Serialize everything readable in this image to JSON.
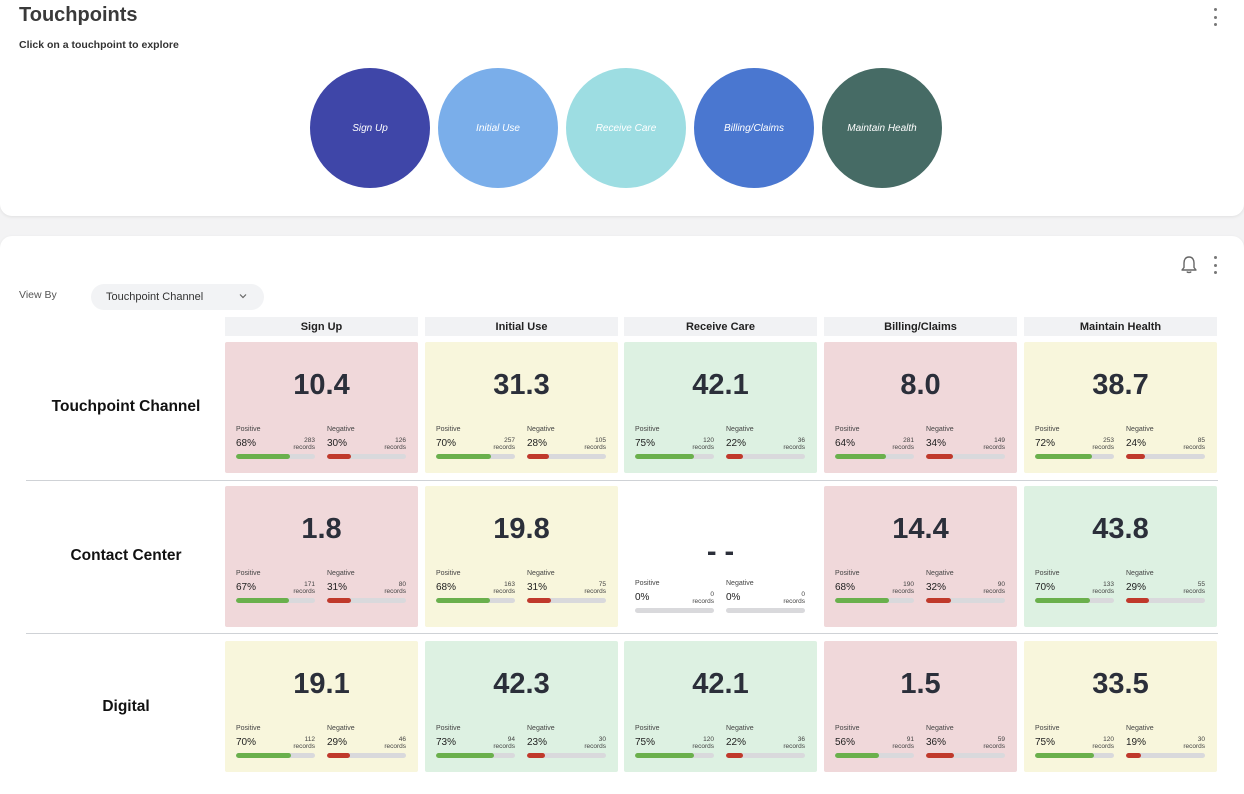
{
  "header": {
    "title": "Touchpoints",
    "subtitle": "Click on a touchpoint to explore"
  },
  "touchpoints": [
    {
      "label": "Sign Up",
      "color": "#3f46a8"
    },
    {
      "label": "Initial Use",
      "color": "#7aaeea"
    },
    {
      "label": "Receive Care",
      "color": "#9ddde2"
    },
    {
      "label": "Billing/Claims",
      "color": "#4a77d0"
    },
    {
      "label": "Maintain Health",
      "color": "#466b65"
    }
  ],
  "controls": {
    "view_by_label": "View By",
    "view_by_value": "Touchpoint Channel"
  },
  "columns": [
    "Sign Up",
    "Initial Use",
    "Receive Care",
    "Billing/Claims",
    "Maintain Health"
  ],
  "labels": {
    "positive": "Positive",
    "negative": "Negative",
    "records": "records"
  },
  "rows": [
    {
      "name": "Touchpoint Channel",
      "cells": [
        {
          "score": "10.4",
          "tone": "red",
          "pos_pct": "68%",
          "pos_records": "283",
          "neg_pct": "30%",
          "neg_records": "126",
          "pos_fill": 0.68,
          "neg_fill": 0.3
        },
        {
          "score": "31.3",
          "tone": "yellow",
          "pos_pct": "70%",
          "pos_records": "257",
          "neg_pct": "28%",
          "neg_records": "105",
          "pos_fill": 0.7,
          "neg_fill": 0.28
        },
        {
          "score": "42.1",
          "tone": "green",
          "pos_pct": "75%",
          "pos_records": "120",
          "neg_pct": "22%",
          "neg_records": "36",
          "pos_fill": 0.75,
          "neg_fill": 0.22
        },
        {
          "score": "8.0",
          "tone": "red",
          "pos_pct": "64%",
          "pos_records": "281",
          "neg_pct": "34%",
          "neg_records": "149",
          "pos_fill": 0.64,
          "neg_fill": 0.34
        },
        {
          "score": "38.7",
          "tone": "yellow",
          "pos_pct": "72%",
          "pos_records": "253",
          "neg_pct": "24%",
          "neg_records": "85",
          "pos_fill": 0.72,
          "neg_fill": 0.24
        }
      ]
    },
    {
      "name": "Contact Center",
      "cells": [
        {
          "score": "1.8",
          "tone": "red",
          "pos_pct": "67%",
          "pos_records": "171",
          "neg_pct": "31%",
          "neg_records": "80",
          "pos_fill": 0.67,
          "neg_fill": 0.31
        },
        {
          "score": "19.8",
          "tone": "yellow",
          "pos_pct": "68%",
          "pos_records": "163",
          "neg_pct": "31%",
          "neg_records": "75",
          "pos_fill": 0.68,
          "neg_fill": 0.31
        },
        {
          "score": "- -",
          "tone": "empty",
          "pos_pct": "0%",
          "pos_records": "0",
          "neg_pct": "0%",
          "neg_records": "0",
          "pos_fill": 0,
          "neg_fill": 0
        },
        {
          "score": "14.4",
          "tone": "red",
          "pos_pct": "68%",
          "pos_records": "190",
          "neg_pct": "32%",
          "neg_records": "90",
          "pos_fill": 0.68,
          "neg_fill": 0.32
        },
        {
          "score": "43.8",
          "tone": "green",
          "pos_pct": "70%",
          "pos_records": "133",
          "neg_pct": "29%",
          "neg_records": "55",
          "pos_fill": 0.7,
          "neg_fill": 0.29
        }
      ]
    },
    {
      "name": "Digital",
      "cells": [
        {
          "score": "19.1",
          "tone": "yellow",
          "pos_pct": "70%",
          "pos_records": "112",
          "neg_pct": "29%",
          "neg_records": "46",
          "pos_fill": 0.7,
          "neg_fill": 0.29
        },
        {
          "score": "42.3",
          "tone": "green",
          "pos_pct": "73%",
          "pos_records": "94",
          "neg_pct": "23%",
          "neg_records": "30",
          "pos_fill": 0.73,
          "neg_fill": 0.23
        },
        {
          "score": "42.1",
          "tone": "green",
          "pos_pct": "75%",
          "pos_records": "120",
          "neg_pct": "22%",
          "neg_records": "36",
          "pos_fill": 0.75,
          "neg_fill": 0.22
        },
        {
          "score": "1.5",
          "tone": "red",
          "pos_pct": "56%",
          "pos_records": "91",
          "neg_pct": "36%",
          "neg_records": "59",
          "pos_fill": 0.56,
          "neg_fill": 0.36
        },
        {
          "score": "33.5",
          "tone": "yellow",
          "pos_pct": "75%",
          "pos_records": "120",
          "neg_pct": "19%",
          "neg_records": "30",
          "pos_fill": 0.75,
          "neg_fill": 0.19
        }
      ]
    }
  ]
}
